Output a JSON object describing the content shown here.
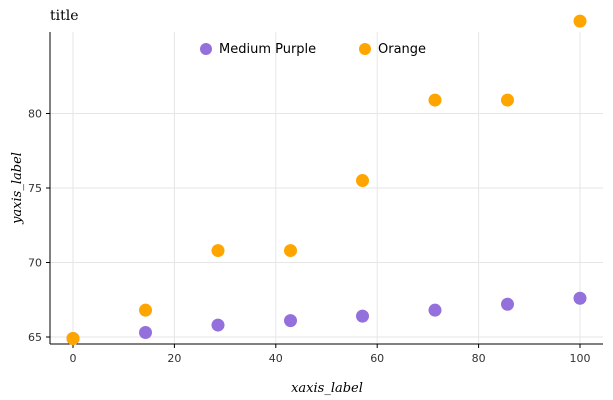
{
  "chart_data": {
    "type": "scatter",
    "title": "title",
    "xlabel": "xaxis_label",
    "ylabel": "yaxis_label",
    "xlim": [
      0,
      100
    ],
    "ylim": [
      65,
      85
    ],
    "x_ticks": [
      0,
      20,
      40,
      60,
      80,
      100
    ],
    "y_ticks": [
      65,
      70,
      75,
      80
    ],
    "grid": true,
    "legend_position": "top",
    "series": [
      {
        "name": "Medium Purple",
        "color": "#9370DB",
        "points": [
          {
            "x": 0,
            "y": 64.9
          },
          {
            "x": 14.3,
            "y": 65.3
          },
          {
            "x": 28.6,
            "y": 65.8
          },
          {
            "x": 42.9,
            "y": 66.1
          },
          {
            "x": 57.1,
            "y": 66.4
          },
          {
            "x": 71.4,
            "y": 66.8
          },
          {
            "x": 85.7,
            "y": 67.2
          },
          {
            "x": 100,
            "y": 67.6
          }
        ]
      },
      {
        "name": "Orange",
        "color": "#FFA500",
        "points": [
          {
            "x": 0,
            "y": 64.9
          },
          {
            "x": 14.3,
            "y": 66.8
          },
          {
            "x": 28.6,
            "y": 70.8
          },
          {
            "x": 42.9,
            "y": 70.8
          },
          {
            "x": 57.1,
            "y": 75.5
          },
          {
            "x": 71.4,
            "y": 80.9
          },
          {
            "x": 85.7,
            "y": 80.9
          },
          {
            "x": 100,
            "y": 86.2
          }
        ]
      }
    ]
  }
}
